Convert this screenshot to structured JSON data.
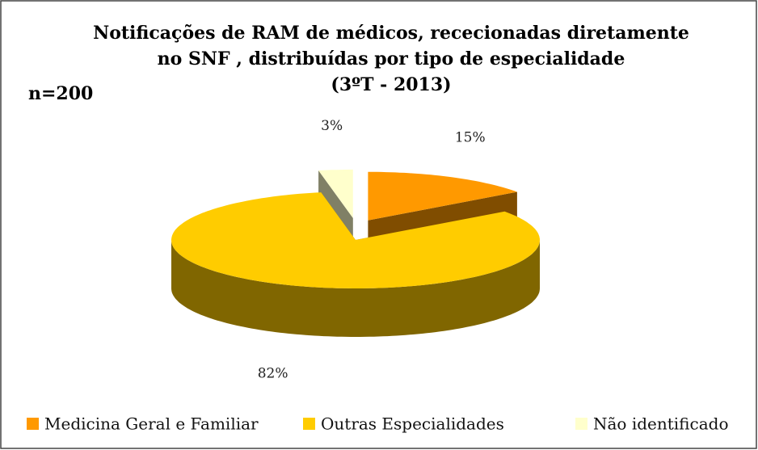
{
  "chart_data": {
    "type": "pie3d",
    "title": [
      "Notificações de RAM de médicos, rececionadas  diretamente",
      "no SNF , distribuídas por tipo de especialidade",
      "(3ºT - 2013)"
    ],
    "annotation": "n=200",
    "categories": [
      "Medicina Geral e Familiar",
      "Outras Especialidades",
      "Não identificado"
    ],
    "values": [
      15,
      82,
      3
    ],
    "value_labels": [
      "15%",
      "82%",
      "3%"
    ],
    "colors": [
      "#FF9900",
      "#FFCC00",
      "#FFFFCC"
    ],
    "exploded": [
      true,
      false,
      true
    ],
    "legend": "bottom"
  }
}
